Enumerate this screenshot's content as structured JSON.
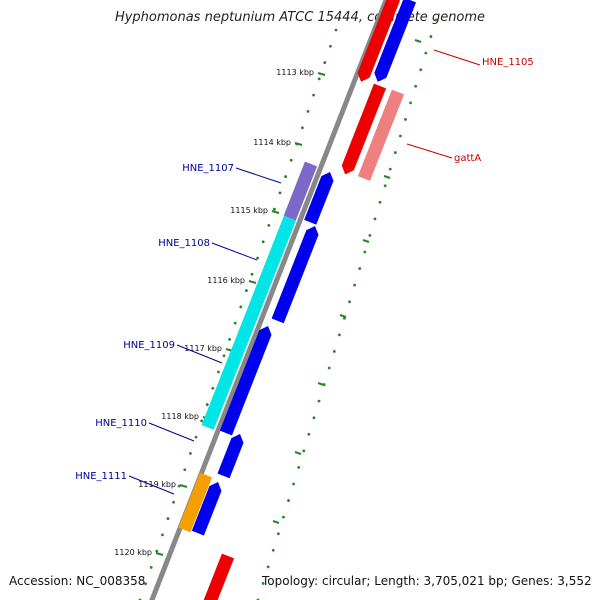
{
  "title": "Hyphomonas neptunium ATCC 15444, complete genome",
  "accession": "Accession: NC_008358",
  "summary": "Topology: circular; Length: 3,705,021 bp; Genes: 3,552",
  "ticks": [
    "1113 kbp",
    "1114 kbp",
    "1115 kbp",
    "1116 kbp",
    "1117 kbp",
    "1118 kbp",
    "1119 kbp",
    "1120 kbp"
  ],
  "gene_labels": [
    {
      "text": "HNE_1105",
      "side": "right",
      "color": "#cc0000"
    },
    {
      "text": "gattA",
      "side": "right",
      "color": "#cc0000"
    },
    {
      "text": "HNE_1107",
      "side": "left",
      "color": "#000099"
    },
    {
      "text": "HNE_1108",
      "side": "left",
      "color": "#000099"
    },
    {
      "text": "HNE_1109",
      "side": "left",
      "color": "#000099"
    },
    {
      "text": "HNE_1110",
      "side": "left",
      "color": "#000099"
    },
    {
      "text": "HNE_1111",
      "side": "left",
      "color": "#000099"
    }
  ],
  "colors": {
    "backbone": "#888888",
    "forward_cds": "#0000ee",
    "reverse_cds": "#ee0000",
    "trna": "#f08080",
    "cog_purple": "#7b68c8",
    "cog_cyan": "#00e5e5",
    "cog_orange": "#f5a000",
    "tick_dots": "#228822"
  }
}
